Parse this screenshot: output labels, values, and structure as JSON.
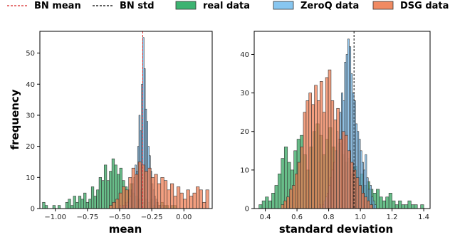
{
  "legend": [
    {
      "label": "BN mean",
      "style": "dashed",
      "color": "#d62728"
    },
    {
      "label": "BN std",
      "style": "dashed",
      "color": "#000000"
    },
    {
      "label": "real data",
      "style": "patch",
      "color": "#3cb371"
    },
    {
      "label": "ZeroQ data",
      "style": "patch",
      "color": "#87c6f0"
    },
    {
      "label": "DSG data",
      "style": "patch",
      "color": "#f08a62"
    }
  ],
  "colors": {
    "real": "#2ea45c",
    "zeroq": "#6fb6ea",
    "dsg": "#ef7a4f",
    "edge": "#333333",
    "bn_mean": "#d62728",
    "bn_std": "#000000"
  },
  "legend_placement": "top",
  "chart_data": [
    {
      "type": "histogram",
      "xlabel": "mean",
      "ylabel": "frequency",
      "xlim": [
        -1.12,
        0.22
      ],
      "ylim": [
        0,
        57
      ],
      "xticks": [
        -1.0,
        -0.75,
        -0.5,
        -0.25,
        0.0
      ],
      "xtick_labels": [
        "−1.00",
        "−0.75",
        "−0.50",
        "−0.25",
        "0.00"
      ],
      "yticks": [
        0,
        10,
        20,
        30,
        40,
        50
      ],
      "grid": false,
      "bn_line": {
        "label": "BN mean",
        "x": -0.32
      },
      "series": [
        {
          "name": "real data",
          "bin_start": -1.1,
          "bin_width": 0.02,
          "counts": [
            2,
            1,
            0,
            0,
            1,
            0,
            1,
            0,
            0,
            2,
            3,
            1,
            4,
            2,
            4,
            3,
            5,
            2,
            3,
            7,
            4,
            6,
            10,
            9,
            14,
            9,
            12,
            16,
            14,
            11,
            13,
            9,
            7,
            6,
            8,
            5,
            4,
            3,
            6,
            2,
            3,
            2,
            3,
            1,
            2,
            1,
            2,
            1,
            1,
            0,
            1,
            1,
            0,
            0,
            0,
            0,
            0,
            0,
            0,
            0,
            0,
            0,
            0,
            0,
            0,
            0,
            0
          ]
        },
        {
          "name": "ZeroQ data",
          "bin_start": -0.5,
          "bin_width": 0.01,
          "counts": [
            1,
            0,
            1,
            1,
            2,
            1,
            2,
            3,
            4,
            6,
            8,
            10,
            14,
            12,
            20,
            30,
            25,
            40,
            55,
            45,
            32,
            28,
            20,
            17,
            12,
            8,
            6,
            4,
            3,
            2,
            1,
            1,
            0,
            1
          ]
        },
        {
          "name": "DSG data",
          "bin_start": -0.58,
          "bin_width": 0.025,
          "counts": [
            1,
            2,
            3,
            5,
            7,
            6,
            10,
            13,
            11,
            15,
            14,
            12,
            13,
            10,
            11,
            8,
            10,
            9,
            6,
            8,
            4,
            7,
            5,
            3,
            6,
            4,
            5,
            7,
            6,
            2,
            6
          ]
        }
      ]
    },
    {
      "type": "histogram",
      "xlabel": "standard deviation",
      "ylabel": "",
      "xlim": [
        0.33,
        1.44
      ],
      "ylim": [
        0,
        46
      ],
      "xticks": [
        0.4,
        0.6,
        0.8,
        1.0,
        1.2,
        1.4
      ],
      "xtick_labels": [
        "0.4",
        "0.6",
        "0.8",
        "1.0",
        "1.2",
        "1.4"
      ],
      "yticks": [
        0,
        10,
        20,
        30,
        40
      ],
      "grid": false,
      "bn_line": {
        "label": "BN std",
        "x": 0.96
      },
      "series": [
        {
          "name": "real data",
          "bin_start": 0.36,
          "bin_width": 0.02,
          "counts": [
            1,
            2,
            3,
            2,
            4,
            6,
            9,
            13,
            16,
            12,
            10,
            15,
            18,
            19,
            14,
            10,
            16,
            20,
            22,
            19,
            14,
            18,
            21,
            16,
            15,
            17,
            14,
            12,
            13,
            9,
            11,
            8,
            9,
            6,
            7,
            5,
            4,
            5,
            3,
            2,
            3,
            4,
            2,
            1,
            2,
            1,
            1,
            2,
            1,
            1,
            0,
            1
          ]
        },
        {
          "name": "ZeroQ data",
          "bin_start": 0.74,
          "bin_width": 0.01,
          "counts": [
            1,
            0,
            1,
            2,
            3,
            4,
            6,
            8,
            10,
            12,
            15,
            20,
            18,
            25,
            30,
            28,
            38,
            40,
            44,
            42,
            35,
            30,
            28,
            22,
            20,
            18,
            15,
            12,
            10,
            14,
            8,
            5,
            6,
            3,
            2,
            1
          ]
        },
        {
          "name": "DSG data",
          "bin_start": 0.5,
          "bin_width": 0.0175,
          "counts": [
            1,
            2,
            3,
            5,
            6,
            9,
            12,
            16,
            25,
            28,
            30,
            27,
            32,
            28,
            33,
            25,
            34,
            36,
            28,
            23,
            26,
            18,
            20,
            19,
            15,
            12,
            10,
            8,
            6,
            4,
            3,
            2,
            1
          ]
        }
      ]
    }
  ]
}
